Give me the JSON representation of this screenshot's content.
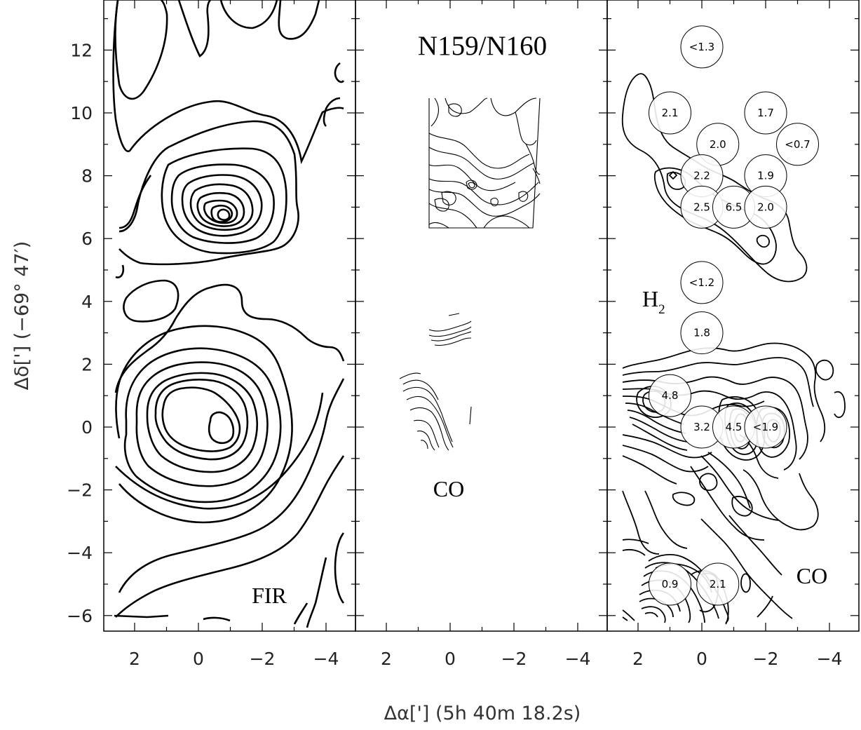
{
  "chart_data": {
    "type": "contour",
    "xlabel": "Δα['] (5h 40m 18.2s)",
    "ylabel": "Δδ['] (−69° 47′)",
    "xlim": [
      3,
      -5
    ],
    "ylim": [
      -6.5,
      13.5
    ],
    "y_ticks": [
      "12",
      "10",
      "8",
      "6",
      "4",
      "2",
      "0",
      "−2",
      "−4",
      "−6"
    ],
    "y_tick_values": [
      12,
      10,
      8,
      6,
      4,
      2,
      0,
      -2,
      -4,
      -6
    ],
    "x_ticks": [
      "2",
      "0",
      "−2",
      "−4"
    ],
    "x_tick_values": [
      2,
      0,
      -2,
      -4
    ],
    "panels": [
      {
        "name": "FIR",
        "labels": [
          {
            "text": "FIR"
          }
        ],
        "peaks": [
          {
            "x": -0.8,
            "y": 6.7
          },
          {
            "x": -0.7,
            "y": 0.0
          }
        ]
      },
      {
        "name": "CO",
        "title": "N159/N160",
        "labels": [
          {
            "text": "CO"
          }
        ]
      },
      {
        "name": "H2/CO",
        "labels": [
          {
            "text": "H",
            "sub": "2"
          },
          {
            "text": "CO"
          }
        ],
        "bubbles": [
          {
            "x": 0.0,
            "y": 12.1,
            "label": "<1.3"
          },
          {
            "x": 1.0,
            "y": 10.0,
            "label": "2.1"
          },
          {
            "x": -2.0,
            "y": 10.0,
            "label": "1.7"
          },
          {
            "x": -0.5,
            "y": 9.0,
            "label": "2.0"
          },
          {
            "x": -3.0,
            "y": 9.0,
            "label": "<0.7"
          },
          {
            "x": 0.0,
            "y": 8.0,
            "label": "2.2"
          },
          {
            "x": -2.0,
            "y": 8.0,
            "label": "1.9"
          },
          {
            "x": 0.0,
            "y": 7.0,
            "label": "2.5"
          },
          {
            "x": -1.0,
            "y": 7.0,
            "label": "6.5"
          },
          {
            "x": -2.0,
            "y": 7.0,
            "label": "2.0"
          },
          {
            "x": 0.0,
            "y": 4.6,
            "label": "<1.2"
          },
          {
            "x": 0.0,
            "y": 3.0,
            "label": "1.8"
          },
          {
            "x": 1.0,
            "y": 1.0,
            "label": "4.8"
          },
          {
            "x": 0.0,
            "y": 0.0,
            "label": "3.2"
          },
          {
            "x": -1.0,
            "y": 0.0,
            "label": "4.5"
          },
          {
            "x": -2.0,
            "y": 0.0,
            "label": "<1.9"
          },
          {
            "x": 1.0,
            "y": -5.0,
            "label": "0.9"
          },
          {
            "x": -0.5,
            "y": -5.0,
            "label": "2.1"
          }
        ]
      }
    ]
  }
}
